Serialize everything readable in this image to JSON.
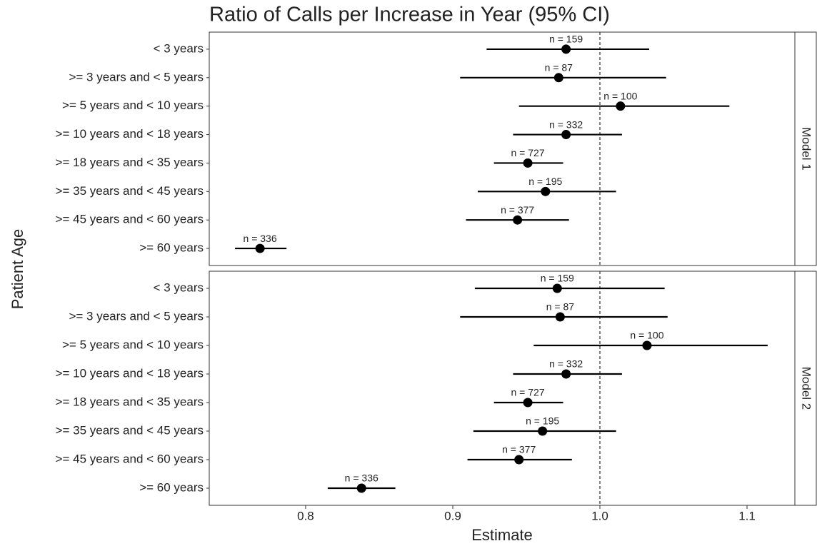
{
  "chart_data": {
    "type": "forest",
    "title": "Ratio of Calls per Increase in Year (95% CI)",
    "x_label": "Estimate",
    "y_label": "Patient Age",
    "xlim": [
      0.7345,
      1.1325
    ],
    "xticks": [
      0.8,
      0.9,
      {
        "value": 1,
        "label": "1.0"
      },
      1.1
    ],
    "ref_line": 1,
    "color": "#000000",
    "panels": [
      {
        "name": "Model 1",
        "categories": [
          "< 3 years",
          ">= 3 years and < 5 years",
          ">= 5 years and < 10 years",
          ">= 10 years and < 18 years",
          ">= 18 years and < 35 years",
          ">= 35 years and < 45 years",
          ">= 45 years and < 60 years",
          ">= 60 years"
        ],
        "values": [
          0.977,
          0.972,
          1.014,
          0.977,
          0.951,
          0.963,
          0.944,
          0.769
        ],
        "lower": [
          0.923,
          0.905,
          0.945,
          0.941,
          0.928,
          0.917,
          0.909,
          0.752
        ],
        "upper": [
          1.0335,
          1.045,
          1.088,
          1.015,
          0.975,
          1.011,
          0.979,
          0.787
        ],
        "value_labels": [
          "n = 159",
          "n = 87",
          "n = 100",
          "n = 332",
          "n = 727",
          "n = 195",
          "n = 377",
          "n = 336"
        ]
      },
      {
        "name": "Model 2",
        "categories": [
          "< 3 years",
          ">= 3 years and < 5 years",
          ">= 5 years and < 10 years",
          ">= 10 years and < 18 years",
          ">= 18 years and < 35 years",
          ">= 35 years and < 45 years",
          ">= 45 years and < 60 years",
          ">= 60 years"
        ],
        "values": [
          0.971,
          0.973,
          1.032,
          0.977,
          0.951,
          0.961,
          0.945,
          0.838
        ],
        "lower": [
          0.915,
          0.905,
          0.955,
          0.941,
          0.928,
          0.914,
          0.91,
          0.815
        ],
        "upper": [
          1.044,
          1.046,
          1.114,
          1.015,
          0.975,
          1.011,
          0.981,
          0.861
        ],
        "value_labels": [
          "n = 159",
          "n = 87",
          "n = 100",
          "n = 332",
          "n = 727",
          "n = 195",
          "n = 377",
          "n = 336"
        ]
      }
    ]
  }
}
